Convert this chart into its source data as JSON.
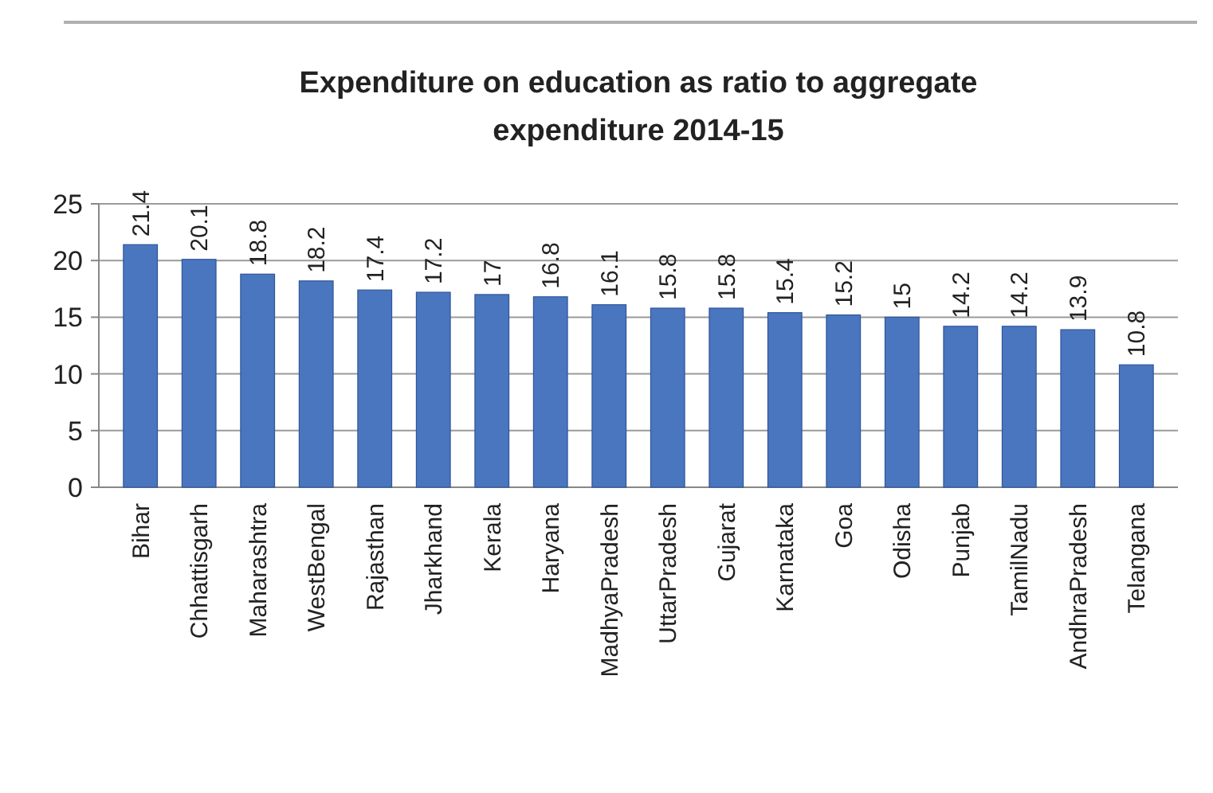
{
  "chart_data": {
    "type": "bar",
    "title": "Expenditure on education as ratio to aggregate expenditure  2014-15",
    "categories": [
      "Bihar",
      "Chhattisgarh",
      "Maharashtra",
      "WestBengal",
      "Rajasthan",
      "Jharkhand",
      "Kerala",
      "Haryana",
      "MadhyaPradesh",
      "UttarPradesh",
      "Gujarat",
      "Karnataka",
      "Goa",
      "Odisha",
      "Punjab",
      "TamilNadu",
      "AndhraPradesh",
      "Telangana"
    ],
    "values": [
      21.4,
      20.1,
      18.8,
      18.2,
      17.4,
      17.2,
      17,
      16.8,
      16.1,
      15.8,
      15.8,
      15.4,
      15.2,
      15,
      14.2,
      14.2,
      13.9,
      10.8
    ],
    "color": "#4a76c0",
    "ylim": [
      0,
      25
    ],
    "yticks": [
      0,
      5,
      10,
      15,
      20,
      25
    ],
    "grid": "y",
    "data_labels": true
  }
}
